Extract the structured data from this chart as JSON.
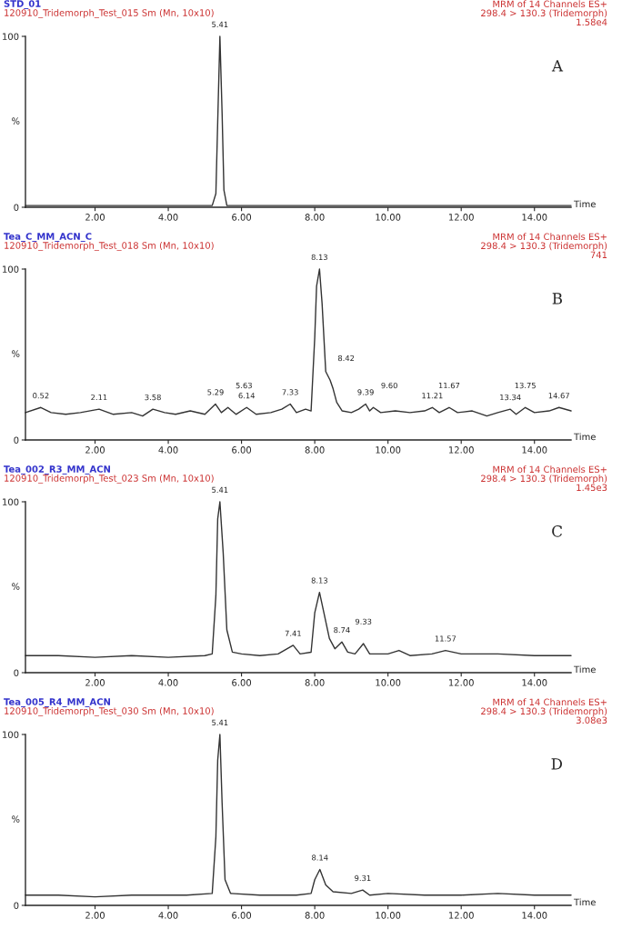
{
  "chart_data": [
    {
      "type": "line",
      "title": "STD_01",
      "subtitle": "120910_Tridemorph_Test_015 Sm (Mn, 10x10)",
      "xlabel": "Time",
      "ylabel": "%",
      "xlim": [
        0.1,
        15.0
      ],
      "ylim": [
        0,
        100
      ],
      "xticks": [
        {
          "value": 2,
          "label": "2.00"
        },
        {
          "value": 4,
          "label": "4.00"
        },
        {
          "value": 6,
          "label": "6.00"
        },
        {
          "value": 8,
          "label": "8.00"
        },
        {
          "value": 10,
          "label": "10.00"
        },
        {
          "value": 12,
          "label": "12.00"
        },
        {
          "value": 14,
          "label": "14.00"
        }
      ],
      "yticks": [
        0,
        100
      ],
      "series": [
        {
          "color": "#333333",
          "x": [
            0.1,
            1,
            2,
            3,
            4,
            4.5,
            5.0,
            5.2,
            5.3,
            5.35,
            5.41,
            5.47,
            5.52,
            5.6,
            5.8,
            6.5,
            8,
            10,
            12,
            14,
            15
          ],
          "values": [
            1,
            1,
            1,
            1,
            1,
            1,
            1,
            1,
            8,
            50,
            100,
            55,
            10,
            1,
            1,
            1,
            1,
            1,
            1,
            1,
            1
          ]
        }
      ],
      "annotations": [
        "MRM of 14 Channels ES+",
        "298.4 > 130.3 (Tridemorph)",
        "1.58e4",
        "A",
        {
          "text": "5.41",
          "x": 5.41,
          "y": 100
        }
      ]
    },
    {
      "type": "line",
      "title": "Tea_C_MM_ACN_C",
      "subtitle": "120910_Tridemorph_Test_018 Sm (Mn, 10x10)",
      "xlabel": "Time",
      "ylabel": "%",
      "xlim": [
        0.1,
        15.0
      ],
      "ylim": [
        0,
        100
      ],
      "xticks": [
        {
          "value": 2,
          "label": "2.00"
        },
        {
          "value": 4,
          "label": "4.00"
        },
        {
          "value": 6,
          "label": "6.00"
        },
        {
          "value": 8,
          "label": "8.00"
        },
        {
          "value": 10,
          "label": "10.00"
        },
        {
          "value": 12,
          "label": "12.00"
        },
        {
          "value": 14,
          "label": "14.00"
        }
      ],
      "yticks": [
        0,
        100
      ],
      "series": [
        {
          "color": "#333333",
          "x": [
            0.1,
            0.52,
            0.8,
            1.2,
            1.6,
            2.11,
            2.5,
            3.0,
            3.3,
            3.58,
            3.9,
            4.2,
            4.6,
            5.0,
            5.29,
            5.45,
            5.63,
            5.85,
            6.14,
            6.4,
            6.8,
            7.1,
            7.33,
            7.5,
            7.75,
            7.9,
            8.0,
            8.05,
            8.13,
            8.2,
            8.3,
            8.42,
            8.5,
            8.6,
            8.75,
            9.0,
            9.2,
            9.39,
            9.5,
            9.6,
            9.8,
            10.2,
            10.6,
            11.0,
            11.21,
            11.4,
            11.67,
            11.9,
            12.3,
            12.7,
            13.0,
            13.34,
            13.5,
            13.75,
            14.0,
            14.4,
            14.67,
            15.0
          ],
          "values": [
            16,
            19,
            16,
            15,
            16,
            18,
            15,
            16,
            14,
            18,
            16,
            15,
            17,
            15,
            21,
            16,
            19,
            15,
            19,
            15,
            16,
            18,
            21,
            16,
            18,
            17,
            60,
            90,
            100,
            80,
            40,
            35,
            30,
            22,
            17,
            16,
            18,
            21,
            17,
            19,
            16,
            17,
            16,
            17,
            19,
            16,
            19,
            16,
            17,
            14,
            16,
            18,
            15,
            19,
            16,
            17,
            19,
            17
          ]
        }
      ],
      "annotations": [
        "MRM of 14 Channels ES+",
        "298.4 > 130.3 (Tridemorph)",
        "741",
        "B",
        {
          "text": "8.13",
          "x": 8.13,
          "y": 100
        },
        {
          "text": "8.42",
          "x": 8.42,
          "y": 35
        },
        {
          "text": "0.52",
          "x": 0.52,
          "y": 19
        },
        {
          "text": "2.11",
          "x": 2.11,
          "y": 18
        },
        {
          "text": "3.58",
          "x": 3.58,
          "y": 18
        },
        {
          "text": "5.29",
          "x": 5.29,
          "y": 21
        },
        {
          "text": "5.63",
          "x": 5.63,
          "y": 19
        },
        {
          "text": "6.14",
          "x": 6.14,
          "y": 19
        },
        {
          "text": "7.33",
          "x": 7.33,
          "y": 21
        },
        {
          "text": "9.39",
          "x": 9.39,
          "y": 21
        },
        {
          "text": "9.60",
          "x": 9.6,
          "y": 19
        },
        {
          "text": "11.21",
          "x": 11.21,
          "y": 19
        },
        {
          "text": "11.67",
          "x": 11.67,
          "y": 19
        },
        {
          "text": "13.34",
          "x": 13.34,
          "y": 18
        },
        {
          "text": "13.75",
          "x": 13.75,
          "y": 19
        },
        {
          "text": "14.67",
          "x": 14.67,
          "y": 19
        }
      ]
    },
    {
      "type": "line",
      "title": "Tea_002_R3_MM_ACN",
      "subtitle": "120910_Tridemorph_Test_023 Sm (Mn, 10x10)",
      "xlabel": "Time",
      "ylabel": "%",
      "xlim": [
        0.1,
        15.0
      ],
      "ylim": [
        0,
        100
      ],
      "xticks": [
        {
          "value": 2,
          "label": "2.00"
        },
        {
          "value": 4,
          "label": "4.00"
        },
        {
          "value": 6,
          "label": "6.00"
        },
        {
          "value": 8,
          "label": "8.00"
        },
        {
          "value": 10,
          "label": "10.00"
        },
        {
          "value": 12,
          "label": "12.00"
        },
        {
          "value": 14,
          "label": "14.00"
        }
      ],
      "yticks": [
        0,
        100
      ],
      "series": [
        {
          "color": "#333333",
          "x": [
            0.1,
            1,
            2,
            3,
            4,
            5,
            5.2,
            5.3,
            5.35,
            5.41,
            5.5,
            5.6,
            5.75,
            6.0,
            6.5,
            7.0,
            7.41,
            7.6,
            7.9,
            8.0,
            8.13,
            8.25,
            8.4,
            8.55,
            8.74,
            8.9,
            9.1,
            9.33,
            9.5,
            10,
            10.3,
            10.6,
            11.2,
            11.57,
            12,
            13,
            14,
            15
          ],
          "values": [
            10,
            10,
            9,
            10,
            9,
            10,
            11,
            45,
            90,
            100,
            70,
            25,
            12,
            11,
            10,
            11,
            16,
            11,
            12,
            35,
            47,
            35,
            20,
            14,
            18,
            12,
            11,
            17,
            11,
            11,
            13,
            10,
            11,
            13,
            11,
            11,
            10,
            10
          ]
        }
      ],
      "annotations": [
        "MRM of 14 Channels ES+",
        "298.4 > 130.3 (Tridemorph)",
        "1.45e3",
        "C",
        {
          "text": "5.41",
          "x": 5.41,
          "y": 100
        },
        {
          "text": "8.13",
          "x": 8.13,
          "y": 47
        },
        {
          "text": "7.41",
          "x": 7.41,
          "y": 16
        },
        {
          "text": "8.74",
          "x": 8.74,
          "y": 18
        },
        {
          "text": "9.33",
          "x": 9.33,
          "y": 17
        },
        {
          "text": "11.57",
          "x": 11.57,
          "y": 13
        }
      ]
    },
    {
      "type": "line",
      "title": "Tea_005_R4_MM_ACN",
      "subtitle": "120910_Tridemorph_Test_030 Sm (Mn, 10x10)",
      "xlabel": "Time",
      "ylabel": "%",
      "xlim": [
        0.1,
        15.0
      ],
      "ylim": [
        0,
        100
      ],
      "xticks": [
        {
          "value": 2,
          "label": "2.00"
        },
        {
          "value": 4,
          "label": "4.00"
        },
        {
          "value": 6,
          "label": "6.00"
        },
        {
          "value": 8,
          "label": "8.00"
        },
        {
          "value": 10,
          "label": "10.00"
        },
        {
          "value": 12,
          "label": "12.00"
        },
        {
          "value": 14,
          "label": "14.00"
        }
      ],
      "yticks": [
        0,
        100
      ],
      "series": [
        {
          "color": "#333333",
          "x": [
            0.1,
            1,
            2,
            3,
            4,
            4.5,
            5.2,
            5.3,
            5.35,
            5.41,
            5.47,
            5.55,
            5.7,
            6.5,
            7.5,
            7.9,
            8.0,
            8.14,
            8.3,
            8.5,
            9.0,
            9.31,
            9.5,
            10,
            11,
            12,
            13,
            14,
            15
          ],
          "values": [
            6,
            6,
            5,
            6,
            6,
            6,
            7,
            40,
            85,
            100,
            60,
            15,
            7,
            6,
            6,
            7,
            15,
            21,
            12,
            8,
            7,
            9,
            6,
            7,
            6,
            6,
            7,
            6,
            6
          ]
        }
      ],
      "annotations": [
        "MRM of 14 Channels ES+",
        "298.4 > 130.3 (Tridemorph)",
        "3.08e3",
        "D",
        {
          "text": "5.41",
          "x": 5.41,
          "y": 100
        },
        {
          "text": "8.14",
          "x": 8.14,
          "y": 21
        },
        {
          "text": "9.31",
          "x": 9.31,
          "y": 9
        }
      ]
    }
  ]
}
